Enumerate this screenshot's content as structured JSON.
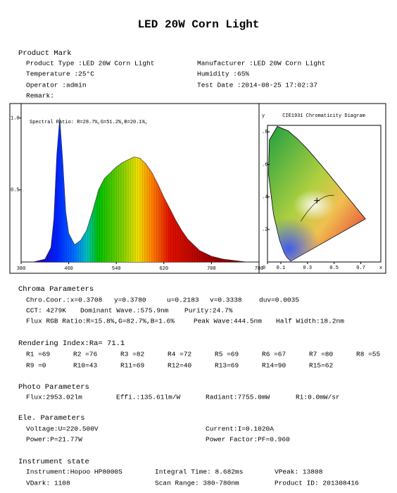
{
  "title": "LED 20W Corn Light",
  "product_mark": {
    "heading": "Product Mark",
    "rows": [
      [
        "Product Type :LED 20W Corn Light",
        "Manufacturer :LED 20W Corn Light"
      ],
      [
        "Temperature :25°C",
        "Humidity :65%"
      ],
      [
        "Operator :admin",
        "Test Date :2014-08-25 17:02:37"
      ],
      [
        "Remark:"
      ]
    ]
  },
  "spectrum": {
    "type": "area",
    "annotation": "Spectral Ratio: R=28.7%,G=51.2%,B=20.1%,",
    "x": [
      380,
      400,
      420,
      430,
      435,
      440,
      445,
      450,
      455,
      460,
      470,
      480,
      490,
      500,
      510,
      520,
      530,
      540,
      550,
      560,
      570,
      580,
      590,
      600,
      610,
      620,
      630,
      640,
      650,
      660,
      670,
      680,
      700,
      720,
      740,
      760,
      780
    ],
    "values": [
      0,
      0,
      0.02,
      0.1,
      0.3,
      0.75,
      1.0,
      0.7,
      0.35,
      0.2,
      0.12,
      0.15,
      0.22,
      0.35,
      0.5,
      0.58,
      0.62,
      0.66,
      0.69,
      0.71,
      0.73,
      0.72,
      0.68,
      0.62,
      0.54,
      0.45,
      0.37,
      0.29,
      0.22,
      0.16,
      0.12,
      0.08,
      0.04,
      0.02,
      0.01,
      0,
      0
    ],
    "xlim": [
      380,
      780
    ],
    "xticks": [
      380,
      460,
      540,
      620,
      700,
      780
    ],
    "ylim": [
      0,
      1.1
    ],
    "yticks": [
      {
        "value": 1,
        "label": "1.0"
      },
      0.5
    ]
  },
  "cie_diagram": {
    "type": "scatter",
    "title": "CIE1931 Chromaticity Diagram",
    "x_label": "x",
    "y_label": "y",
    "xlim": [
      0,
      0.85
    ],
    "ylim": [
      0,
      0.84
    ],
    "xticks": [
      0,
      0.1,
      0.3,
      0.5,
      0.7
    ],
    "yticks": [
      {
        "value": 0.2,
        "label": ".2"
      },
      {
        "value": 0.4,
        "label": ".4"
      },
      {
        "value": 0.6,
        "label": ".6"
      },
      {
        "value": 0.8,
        "label": ".8"
      }
    ],
    "x": [
      0.3708
    ],
    "values": [
      0.378
    ]
  },
  "chroma": {
    "heading": "Chroma Parameters",
    "lines": [
      [
        "Chro.Coor.:x=0.3708",
        "y=0.3780",
        "u=0.2183",
        "v=0.3338",
        "duv=0.0035"
      ],
      [
        "CCT: 4279K",
        "Dominant Wave.:575.9nm",
        "Purity:24.7%"
      ],
      [
        "Flux RGB Ratio:R=15.8%,G=82.7%,B=1.6%",
        "Peak Wave:444.5nm",
        "Half Width:18.2nm"
      ]
    ]
  },
  "rendering": {
    "heading": "Rendering Index:Ra= 71.1",
    "lines": [
      [
        "R1 =69",
        "R2 =76",
        "R3 =82",
        "R4 =72",
        "R5 =69",
        "R6 =67",
        "R7 =80",
        "R8 =55"
      ],
      [
        "R9 =0",
        "R10=43",
        "R11=69",
        "R12=40",
        "R13=69",
        "R14=90",
        "R15=62"
      ]
    ]
  },
  "photo": {
    "heading": "Photo Parameters",
    "lines": [
      [
        "Flux:2953.02lm",
        "Effi.:135.61lm/W",
        "Radiant:7755.0mW",
        "Ri:0.0mW/sr"
      ]
    ]
  },
  "ele": {
    "heading": "Ele. Parameters",
    "lines": [
      [
        "Voltage:U=220.500V",
        "Current:I=0.1020A"
      ],
      [
        "Power:P=21.77W",
        "Power Factor:PF=0.960"
      ]
    ]
  },
  "instrument": {
    "heading": "Instrument state",
    "lines": [
      [
        "Instrument:Hopoo HP8000S",
        "Integral Time: 8.682ms",
        "VPeak: 13808"
      ],
      [
        "VDark: 1108",
        "Scan Range: 380-780nm",
        "Product ID: 201308416"
      ]
    ]
  }
}
